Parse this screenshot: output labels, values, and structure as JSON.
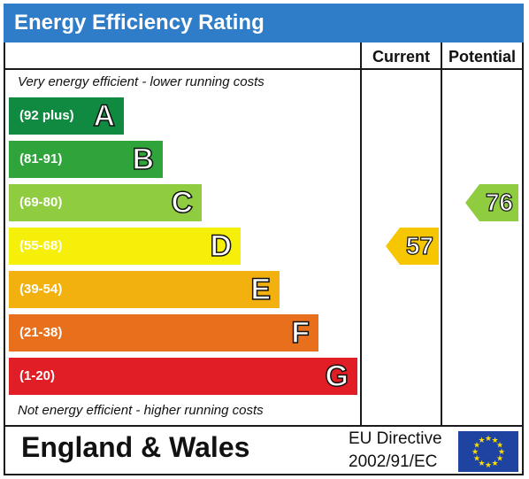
{
  "title": "Energy Efficiency Rating",
  "columns": {
    "current": "Current",
    "potential": "Potential"
  },
  "notes": {
    "top": "Very energy efficient - lower running costs",
    "bottom": "Not energy efficient - higher running costs"
  },
  "chart_data": {
    "type": "bar",
    "title": "Energy Efficiency Rating",
    "bands": [
      {
        "letter": "A",
        "range": "(92 plus)",
        "color": "#108a41"
      },
      {
        "letter": "B",
        "range": "(81-91)",
        "color": "#2ea43a"
      },
      {
        "letter": "C",
        "range": "(69-80)",
        "color": "#8fcc3f"
      },
      {
        "letter": "D",
        "range": "(55-68)",
        "color": "#f6ef0a"
      },
      {
        "letter": "E",
        "range": "(39-54)",
        "color": "#f2b10e"
      },
      {
        "letter": "F",
        "range": "(21-38)",
        "color": "#e8701d"
      },
      {
        "letter": "G",
        "range": "(1-20)",
        "color": "#e11d26"
      }
    ],
    "current": {
      "value": 57,
      "band": "D",
      "color": "#f6c600"
    },
    "potential": {
      "value": 76,
      "band": "C",
      "color": "#8fcc3f"
    }
  },
  "footer": {
    "region": "England & Wales",
    "directive_line1": "EU Directive",
    "directive_line2": "2002/91/EC"
  },
  "colors": {
    "title_bar": "#2f7dc8",
    "eu_flag": "#1f43a1",
    "eu_stars": "#ffdd00"
  }
}
